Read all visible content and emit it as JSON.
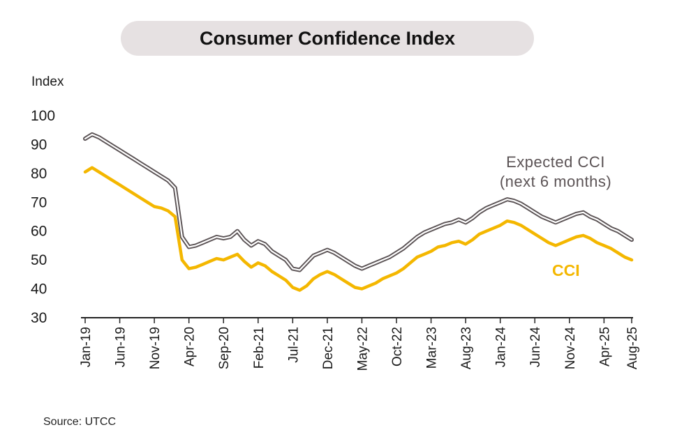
{
  "chart_data": {
    "type": "line",
    "title": "Consumer Confidence Index",
    "ylabel": "Index",
    "source": "Source: UTCC",
    "ylim": [
      30,
      100
    ],
    "yticks": [
      30,
      40,
      50,
      60,
      70,
      80,
      90,
      100
    ],
    "x_start": "2019-01",
    "x_end": "2025-08",
    "xtick_labels": [
      "Jan-19",
      "Jun-19",
      "Nov-19",
      "Apr-20",
      "Sep-20",
      "Feb-21",
      "Jul-21",
      "Dec-21",
      "May-22",
      "Oct-22",
      "Mar-23",
      "Aug-23",
      "Jan-24",
      "Jun-24",
      "Nov-24",
      "Apr-25",
      "Aug-25"
    ],
    "grid": false,
    "series": [
      {
        "name": "Expected CCI (next 6 months)",
        "label_lines": [
          "Expected CCI",
          "(next 6 months)"
        ],
        "color": "#5b5355",
        "style": "double",
        "points": [
          [
            "2019-01",
            92
          ],
          [
            "2019-02",
            93.5
          ],
          [
            "2019-03",
            92.5
          ],
          [
            "2019-04",
            91
          ],
          [
            "2019-05",
            89.5
          ],
          [
            "2019-06",
            88
          ],
          [
            "2019-07",
            86.5
          ],
          [
            "2019-08",
            85
          ],
          [
            "2019-09",
            83.5
          ],
          [
            "2019-10",
            82
          ],
          [
            "2019-11",
            80.5
          ],
          [
            "2019-12",
            79
          ],
          [
            "2020-01",
            77.5
          ],
          [
            "2020-02",
            75
          ],
          [
            "2020-03",
            58
          ],
          [
            "2020-04",
            54.5
          ],
          [
            "2020-05",
            55
          ],
          [
            "2020-06",
            56
          ],
          [
            "2020-07",
            57
          ],
          [
            "2020-08",
            58
          ],
          [
            "2020-09",
            57.5
          ],
          [
            "2020-10",
            58
          ],
          [
            "2020-11",
            60
          ],
          [
            "2020-12",
            57
          ],
          [
            "2021-01",
            55
          ],
          [
            "2021-02",
            56.5
          ],
          [
            "2021-03",
            55.5
          ],
          [
            "2021-04",
            53
          ],
          [
            "2021-05",
            51.5
          ],
          [
            "2021-06",
            50
          ],
          [
            "2021-07",
            47
          ],
          [
            "2021-08",
            46.5
          ],
          [
            "2021-09",
            49
          ],
          [
            "2021-10",
            51.5
          ],
          [
            "2021-11",
            52.5
          ],
          [
            "2021-12",
            53.5
          ],
          [
            "2022-01",
            52.5
          ],
          [
            "2022-02",
            51
          ],
          [
            "2022-03",
            49.5
          ],
          [
            "2022-04",
            48
          ],
          [
            "2022-05",
            47
          ],
          [
            "2022-06",
            48
          ],
          [
            "2022-07",
            49
          ],
          [
            "2022-08",
            50
          ],
          [
            "2022-09",
            51
          ],
          [
            "2022-10",
            52.5
          ],
          [
            "2022-11",
            54
          ],
          [
            "2022-12",
            56
          ],
          [
            "2023-01",
            58
          ],
          [
            "2023-02",
            59.5
          ],
          [
            "2023-03",
            60.5
          ],
          [
            "2023-04",
            61.5
          ],
          [
            "2023-05",
            62.5
          ],
          [
            "2023-06",
            63
          ],
          [
            "2023-07",
            64
          ],
          [
            "2023-08",
            63
          ],
          [
            "2023-09",
            64.5
          ],
          [
            "2023-10",
            66.5
          ],
          [
            "2023-11",
            68
          ],
          [
            "2023-12",
            69
          ],
          [
            "2024-01",
            70
          ],
          [
            "2024-02",
            71
          ],
          [
            "2024-03",
            70.5
          ],
          [
            "2024-04",
            69.5
          ],
          [
            "2024-05",
            68
          ],
          [
            "2024-06",
            66.5
          ],
          [
            "2024-07",
            65
          ],
          [
            "2024-08",
            64
          ],
          [
            "2024-09",
            63
          ],
          [
            "2024-10",
            64
          ],
          [
            "2024-11",
            65
          ],
          [
            "2024-12",
            66
          ],
          [
            "2025-01",
            66.5
          ],
          [
            "2025-02",
            65
          ],
          [
            "2025-03",
            64
          ],
          [
            "2025-04",
            62.5
          ],
          [
            "2025-05",
            61
          ],
          [
            "2025-06",
            60
          ],
          [
            "2025-07",
            58.5
          ],
          [
            "2025-08",
            57
          ]
        ]
      },
      {
        "name": "CCI",
        "label_lines": [
          "CCI"
        ],
        "color": "#f4b700",
        "style": "solid",
        "points": [
          [
            "2019-01",
            80.5
          ],
          [
            "2019-02",
            82
          ],
          [
            "2019-03",
            80.5
          ],
          [
            "2019-04",
            79
          ],
          [
            "2019-05",
            77.5
          ],
          [
            "2019-06",
            76
          ],
          [
            "2019-07",
            74.5
          ],
          [
            "2019-08",
            73
          ],
          [
            "2019-09",
            71.5
          ],
          [
            "2019-10",
            70
          ],
          [
            "2019-11",
            68.5
          ],
          [
            "2019-12",
            68
          ],
          [
            "2020-01",
            67
          ],
          [
            "2020-02",
            65
          ],
          [
            "2020-03",
            50
          ],
          [
            "2020-04",
            47
          ],
          [
            "2020-05",
            47.5
          ],
          [
            "2020-06",
            48.5
          ],
          [
            "2020-07",
            49.5
          ],
          [
            "2020-08",
            50.5
          ],
          [
            "2020-09",
            50
          ],
          [
            "2020-10",
            51
          ],
          [
            "2020-11",
            52
          ],
          [
            "2020-12",
            49.5
          ],
          [
            "2021-01",
            47.5
          ],
          [
            "2021-02",
            49
          ],
          [
            "2021-03",
            48
          ],
          [
            "2021-04",
            46
          ],
          [
            "2021-05",
            44.5
          ],
          [
            "2021-06",
            43
          ],
          [
            "2021-07",
            40.5
          ],
          [
            "2021-08",
            39.5
          ],
          [
            "2021-09",
            41
          ],
          [
            "2021-10",
            43.5
          ],
          [
            "2021-11",
            45
          ],
          [
            "2021-12",
            46
          ],
          [
            "2022-01",
            45
          ],
          [
            "2022-02",
            43.5
          ],
          [
            "2022-03",
            42
          ],
          [
            "2022-04",
            40.5
          ],
          [
            "2022-05",
            40
          ],
          [
            "2022-06",
            41
          ],
          [
            "2022-07",
            42
          ],
          [
            "2022-08",
            43.5
          ],
          [
            "2022-09",
            44.5
          ],
          [
            "2022-10",
            45.5
          ],
          [
            "2022-11",
            47
          ],
          [
            "2022-12",
            49
          ],
          [
            "2023-01",
            51
          ],
          [
            "2023-02",
            52
          ],
          [
            "2023-03",
            53
          ],
          [
            "2023-04",
            54.5
          ],
          [
            "2023-05",
            55
          ],
          [
            "2023-06",
            56
          ],
          [
            "2023-07",
            56.5
          ],
          [
            "2023-08",
            55.5
          ],
          [
            "2023-09",
            57
          ],
          [
            "2023-10",
            59
          ],
          [
            "2023-11",
            60
          ],
          [
            "2023-12",
            61
          ],
          [
            "2024-01",
            62
          ],
          [
            "2024-02",
            63.5
          ],
          [
            "2024-03",
            63
          ],
          [
            "2024-04",
            62
          ],
          [
            "2024-05",
            60.5
          ],
          [
            "2024-06",
            59
          ],
          [
            "2024-07",
            57.5
          ],
          [
            "2024-08",
            56
          ],
          [
            "2024-09",
            55
          ],
          [
            "2024-10",
            56
          ],
          [
            "2024-11",
            57
          ],
          [
            "2024-12",
            58
          ],
          [
            "2025-01",
            58.5
          ],
          [
            "2025-02",
            57.5
          ],
          [
            "2025-03",
            56
          ],
          [
            "2025-04",
            55
          ],
          [
            "2025-05",
            54
          ],
          [
            "2025-06",
            52.5
          ],
          [
            "2025-07",
            51
          ],
          [
            "2025-08",
            50
          ]
        ]
      }
    ]
  }
}
